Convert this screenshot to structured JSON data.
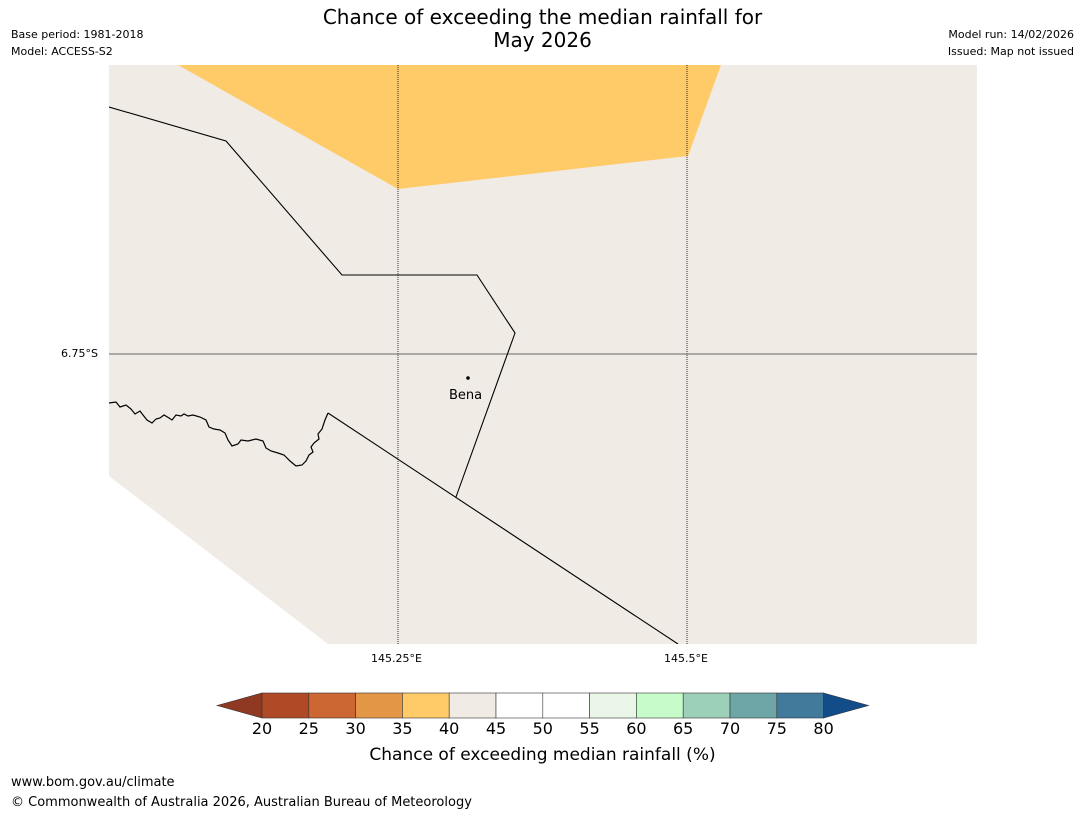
{
  "header": {
    "title_line1": "Chance of exceeding the median rainfall for",
    "title_line2": "May 2026",
    "base_period": "Base period: 1981-2018",
    "model": "Model: ACCESS-S2",
    "model_run": "Model run: 14/02/2026",
    "issued": "Issued: Map not issued"
  },
  "map": {
    "lat_label": "6.75°S",
    "lon_labels": [
      "145.25°E",
      "145.5°E"
    ],
    "place_label": "Bena",
    "colors": {
      "land_background": "#f0ebe5",
      "band_35_40": "#fecb68",
      "gridline": "#000000",
      "boundary": "#000000"
    }
  },
  "colorbar": {
    "ticks": [
      "20",
      "25",
      "30",
      "35",
      "40",
      "45",
      "50",
      "55",
      "60",
      "65",
      "70",
      "75",
      "80"
    ],
    "colors": [
      "#8f3922",
      "#b04a26",
      "#cc6633",
      "#e39645",
      "#fecb68",
      "#f0ebe5",
      "#ffffff",
      "#ffffff",
      "#e8f5e7",
      "#c7fbc9",
      "#9dd0b9",
      "#6ea6a8",
      "#417a9b",
      "#124d8a"
    ],
    "title": "Chance of exceeding median rainfall (%)"
  },
  "footer": {
    "url": "www.bom.gov.au/climate",
    "copyright": "© Commonwealth of Australia 2026, Australian Bureau of Meteorology"
  }
}
